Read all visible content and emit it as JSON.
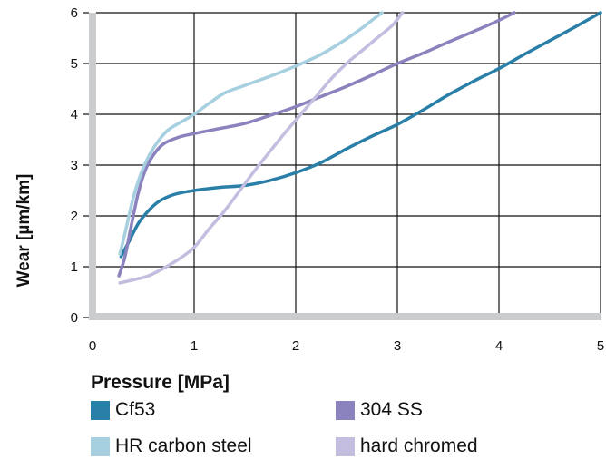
{
  "chart_data": {
    "type": "line",
    "xlabel": "Pressure [MPa]",
    "ylabel": "Wear [µm/km]",
    "xlim": [
      0,
      5
    ],
    "ylim": [
      0,
      6
    ],
    "x_ticks": [
      "0",
      "1",
      "2",
      "3",
      "4",
      "5"
    ],
    "y_ticks": [
      "0",
      "1",
      "2",
      "3",
      "4",
      "5",
      "6"
    ],
    "grid": true,
    "legend_position": "bottom",
    "series": [
      {
        "name": "Cf53",
        "color": "#2a7fa8",
        "points": [
          [
            0.28,
            1.2
          ],
          [
            0.36,
            1.5
          ],
          [
            0.45,
            1.85
          ],
          [
            0.55,
            2.1
          ],
          [
            0.65,
            2.28
          ],
          [
            0.8,
            2.42
          ],
          [
            1.0,
            2.5
          ],
          [
            1.25,
            2.56
          ],
          [
            1.5,
            2.6
          ],
          [
            1.75,
            2.7
          ],
          [
            2.0,
            2.85
          ],
          [
            2.25,
            3.05
          ],
          [
            2.5,
            3.32
          ],
          [
            2.75,
            3.57
          ],
          [
            3.0,
            3.8
          ],
          [
            3.25,
            4.08
          ],
          [
            3.5,
            4.38
          ],
          [
            3.75,
            4.65
          ],
          [
            4.0,
            4.9
          ],
          [
            4.25,
            5.18
          ],
          [
            4.5,
            5.45
          ],
          [
            4.75,
            5.72
          ],
          [
            5.0,
            6.0
          ]
        ]
      },
      {
        "name": "304 SS",
        "color": "#8b83be",
        "points": [
          [
            0.26,
            0.82
          ],
          [
            0.32,
            1.2
          ],
          [
            0.38,
            1.8
          ],
          [
            0.45,
            2.45
          ],
          [
            0.52,
            2.9
          ],
          [
            0.6,
            3.2
          ],
          [
            0.7,
            3.42
          ],
          [
            0.85,
            3.55
          ],
          [
            1.0,
            3.62
          ],
          [
            1.25,
            3.72
          ],
          [
            1.5,
            3.82
          ],
          [
            1.75,
            3.98
          ],
          [
            2.0,
            4.15
          ],
          [
            2.25,
            4.35
          ],
          [
            2.5,
            4.55
          ],
          [
            2.75,
            4.77
          ],
          [
            3.0,
            5.0
          ],
          [
            3.25,
            5.2
          ],
          [
            3.5,
            5.42
          ],
          [
            3.75,
            5.63
          ],
          [
            4.0,
            5.85
          ],
          [
            4.15,
            6.0
          ]
        ]
      },
      {
        "name": "HR carbon steel",
        "color": "#a6cfe0",
        "points": [
          [
            0.27,
            1.25
          ],
          [
            0.33,
            1.75
          ],
          [
            0.4,
            2.35
          ],
          [
            0.48,
            2.85
          ],
          [
            0.56,
            3.2
          ],
          [
            0.65,
            3.48
          ],
          [
            0.75,
            3.7
          ],
          [
            0.9,
            3.88
          ],
          [
            1.0,
            4.0
          ],
          [
            1.15,
            4.22
          ],
          [
            1.3,
            4.42
          ],
          [
            1.5,
            4.57
          ],
          [
            1.75,
            4.75
          ],
          [
            2.0,
            4.95
          ],
          [
            2.25,
            5.18
          ],
          [
            2.45,
            5.42
          ],
          [
            2.62,
            5.65
          ],
          [
            2.75,
            5.85
          ],
          [
            2.85,
            6.0
          ]
        ]
      },
      {
        "name": "hard chromed",
        "color": "#c3bde0",
        "points": [
          [
            0.27,
            0.68
          ],
          [
            0.4,
            0.74
          ],
          [
            0.55,
            0.82
          ],
          [
            0.7,
            0.97
          ],
          [
            0.85,
            1.15
          ],
          [
            1.0,
            1.38
          ],
          [
            1.15,
            1.75
          ],
          [
            1.3,
            2.1
          ],
          [
            1.45,
            2.5
          ],
          [
            1.6,
            2.9
          ],
          [
            1.75,
            3.28
          ],
          [
            1.9,
            3.65
          ],
          [
            2.05,
            4.0
          ],
          [
            2.2,
            4.35
          ],
          [
            2.35,
            4.7
          ],
          [
            2.5,
            5.0
          ],
          [
            2.65,
            5.25
          ],
          [
            2.8,
            5.5
          ],
          [
            2.95,
            5.75
          ],
          [
            3.05,
            6.0
          ]
        ]
      }
    ]
  }
}
